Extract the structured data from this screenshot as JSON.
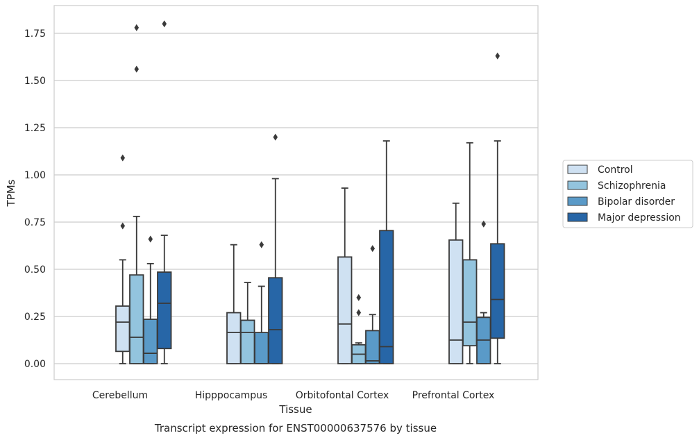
{
  "caption": "Transcript expression for ENST00000637576 by tissue",
  "chart_data": {
    "type": "box",
    "title": "",
    "xlabel": "Tissue",
    "ylabel": "TPMs",
    "ylim": [
      -0.09,
      1.89
    ],
    "yticks": [
      "0.00",
      "0.25",
      "0.50",
      "0.75",
      "1.00",
      "1.25",
      "1.50",
      "1.75"
    ],
    "grid": "horizontal",
    "legend_position": "right",
    "categories": [
      "Cerebellum",
      "Hipppocampus",
      "Orbitofontal Cortex",
      "Prefrontal Cortex"
    ],
    "series": [
      {
        "name": "Control",
        "color": "#cfe1f2",
        "boxes": [
          {
            "whislo": 0.0,
            "q1": 0.065,
            "med": 0.22,
            "q3": 0.305,
            "whishi": 0.55,
            "fliers": [
              0.73,
              1.09
            ]
          },
          {
            "whislo": 0.0,
            "q1": 0.0,
            "med": 0.165,
            "q3": 0.27,
            "whishi": 0.63,
            "fliers": []
          },
          {
            "whislo": 0.0,
            "q1": 0.0,
            "med": 0.21,
            "q3": 0.565,
            "whishi": 0.93,
            "fliers": []
          },
          {
            "whislo": 0.0,
            "q1": 0.0,
            "med": 0.125,
            "q3": 0.655,
            "whishi": 0.85,
            "fliers": []
          }
        ]
      },
      {
        "name": "Schizophrenia",
        "color": "#93c4de",
        "boxes": [
          {
            "whislo": 0.0,
            "q1": 0.0,
            "med": 0.14,
            "q3": 0.47,
            "whishi": 0.78,
            "fliers": [
              1.56,
              1.78
            ]
          },
          {
            "whislo": 0.0,
            "q1": 0.0,
            "med": 0.165,
            "q3": 0.23,
            "whishi": 0.43,
            "fliers": []
          },
          {
            "whislo": 0.0,
            "q1": 0.0,
            "med": 0.05,
            "q3": 0.1,
            "whishi": 0.11,
            "fliers": [
              0.27,
              0.35
            ]
          },
          {
            "whislo": 0.0,
            "q1": 0.095,
            "med": 0.22,
            "q3": 0.55,
            "whishi": 1.17,
            "fliers": []
          }
        ]
      },
      {
        "name": "Bipolar disorder",
        "color": "#5a9ac8",
        "boxes": [
          {
            "whislo": 0.0,
            "q1": 0.0,
            "med": 0.055,
            "q3": 0.235,
            "whishi": 0.53,
            "fliers": [
              0.66
            ]
          },
          {
            "whislo": 0.0,
            "q1": 0.0,
            "med": 0.0,
            "q3": 0.165,
            "whishi": 0.41,
            "fliers": [
              0.63
            ]
          },
          {
            "whislo": 0.0,
            "q1": 0.0,
            "med": 0.015,
            "q3": 0.175,
            "whishi": 0.26,
            "fliers": [
              0.61
            ]
          },
          {
            "whislo": 0.0,
            "q1": 0.0,
            "med": 0.125,
            "q3": 0.245,
            "whishi": 0.27,
            "fliers": [
              0.74
            ]
          }
        ]
      },
      {
        "name": "Major depression",
        "color": "#2766a7",
        "boxes": [
          {
            "whislo": 0.0,
            "q1": 0.08,
            "med": 0.32,
            "q3": 0.485,
            "whishi": 0.68,
            "fliers": [
              1.8
            ]
          },
          {
            "whislo": 0.0,
            "q1": 0.0,
            "med": 0.18,
            "q3": 0.455,
            "whishi": 0.98,
            "fliers": [
              1.2
            ]
          },
          {
            "whislo": 0.0,
            "q1": 0.0,
            "med": 0.09,
            "q3": 0.705,
            "whishi": 1.18,
            "fliers": []
          },
          {
            "whislo": 0.0,
            "q1": 0.135,
            "med": 0.34,
            "q3": 0.635,
            "whishi": 1.18,
            "fliers": [
              1.63
            ]
          }
        ]
      }
    ]
  }
}
